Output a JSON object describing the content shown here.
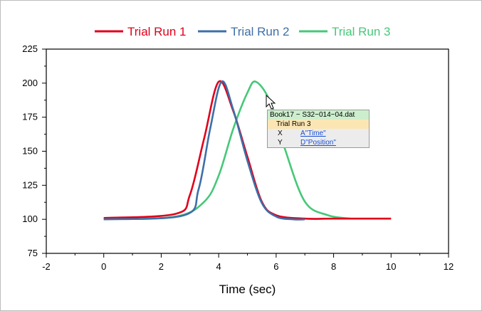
{
  "chart_data": {
    "type": "line",
    "title": "",
    "xlabel": "Time (sec)",
    "ylabel": "",
    "xlim": [
      -2,
      12
    ],
    "ylim": [
      75,
      225
    ],
    "xticks": [
      -2,
      0,
      2,
      4,
      6,
      8,
      10,
      12
    ],
    "yticks": [
      75,
      100,
      125,
      150,
      175,
      200,
      225
    ],
    "grid": false,
    "legend_position": "top-center",
    "series": [
      {
        "name": "Trial Run 1",
        "color": "#e0001b",
        "x": [
          0,
          2.5,
          3.0,
          3.5,
          4.0,
          4.5,
          5.0,
          5.5,
          6.0,
          7.0,
          8.0,
          10.0
        ],
        "y": [
          101,
          104,
          118,
          160,
          201,
          180,
          146,
          113,
          103,
          100.5,
          100.5,
          100.5
        ]
      },
      {
        "name": "Trial Run 2",
        "color": "#3e6fa8",
        "x": [
          0,
          2.8,
          3.3,
          3.7,
          4.1,
          4.5,
          5.0,
          5.5,
          6.0,
          6.6,
          7.0
        ],
        "y": [
          100,
          103,
          122,
          166,
          201,
          181,
          143,
          112,
          102,
          100,
          100
        ]
      },
      {
        "name": "Trial Run 3",
        "color": "#46c878",
        "x": [
          0,
          2.5,
          3.5,
          4.0,
          4.5,
          5.0,
          5.3,
          5.8,
          6.3,
          7.0,
          7.8,
          8.6
        ],
        "y": [
          100,
          102,
          113,
          132,
          166,
          193,
          201,
          186,
          152,
          113,
          103,
          100.5
        ]
      }
    ]
  },
  "tooltip": {
    "book": "Book17 − S32−014−04.dat",
    "series": "Trial Run 3",
    "x_key": "X",
    "x_value": "A\"Time\"",
    "y_key": "Y",
    "y_value": "D\"Position\""
  }
}
